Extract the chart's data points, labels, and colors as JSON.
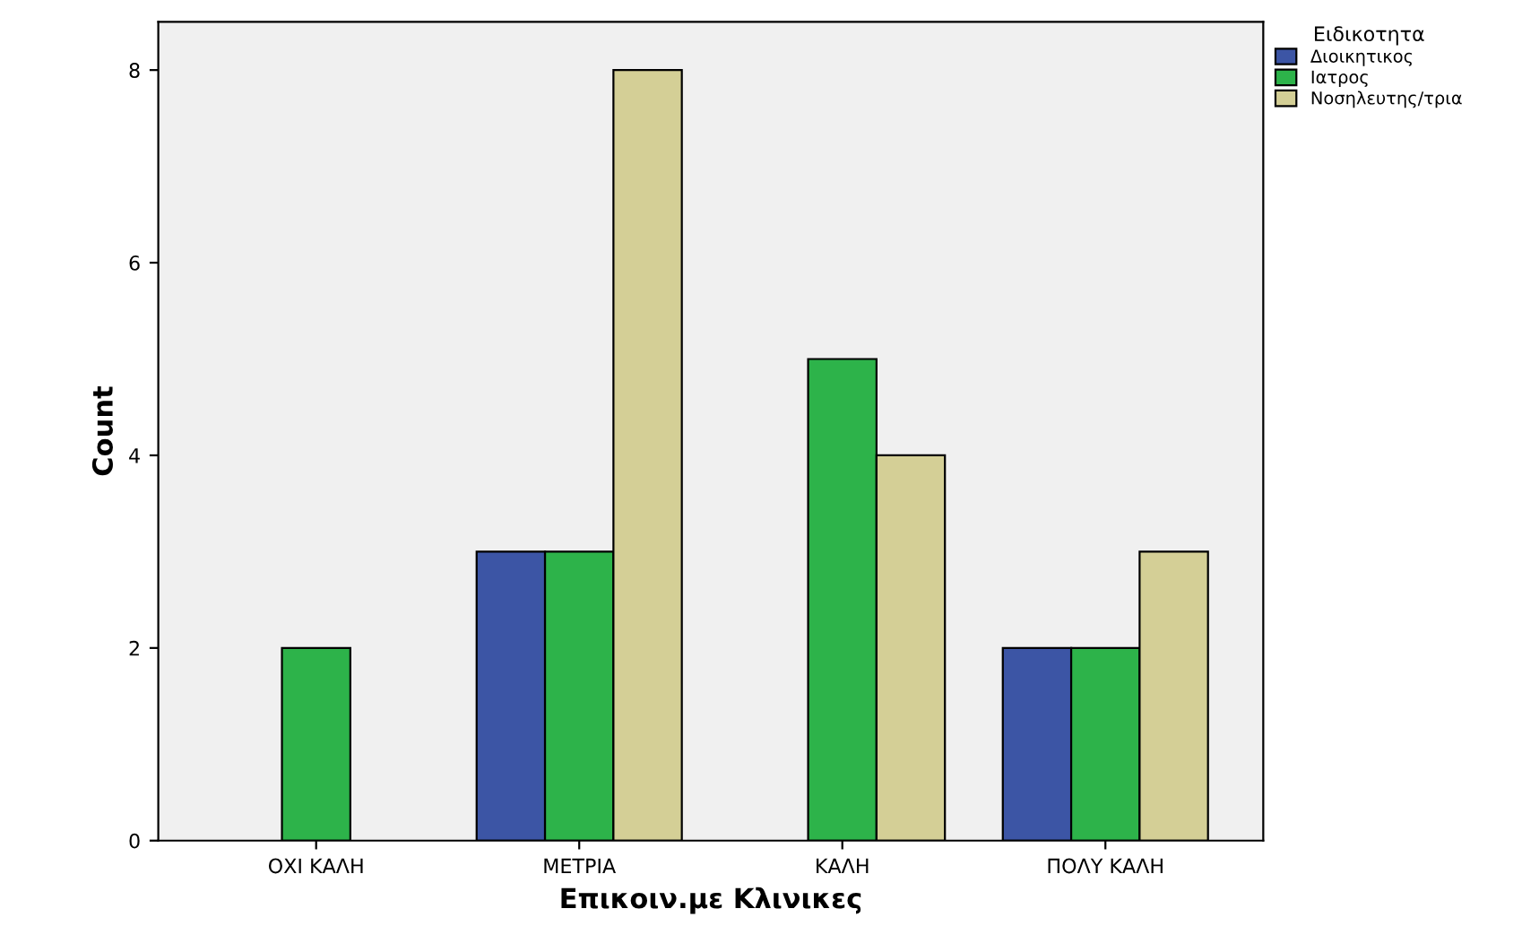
{
  "chart_data": {
    "type": "bar",
    "xlabel": "Επικοιν.με Κλινικες",
    "ylabel": "Count",
    "legend_title": "Ειδικοτητα",
    "categories": [
      "ΟΧΙ ΚΑΛΗ",
      "ΜΕΤΡΙΑ",
      "ΚΑΛΗ",
      "ΠΟΛΥ ΚΑΛΗ"
    ],
    "series": [
      {
        "name": "Διοικητικος",
        "color": "#3c55a5",
        "values": [
          null,
          3,
          null,
          2
        ]
      },
      {
        "name": "Ιατρος",
        "color": "#2db34a",
        "values": [
          2,
          3,
          5,
          2
        ]
      },
      {
        "name": "Νοσηλευτης/τρια",
        "color": "#d4cf96",
        "values": [
          null,
          8,
          4,
          3
        ]
      }
    ],
    "ylim": [
      0,
      8.5
    ],
    "yticks": [
      0,
      2,
      4,
      6,
      8
    ],
    "grid": false,
    "legend": "top right"
  }
}
